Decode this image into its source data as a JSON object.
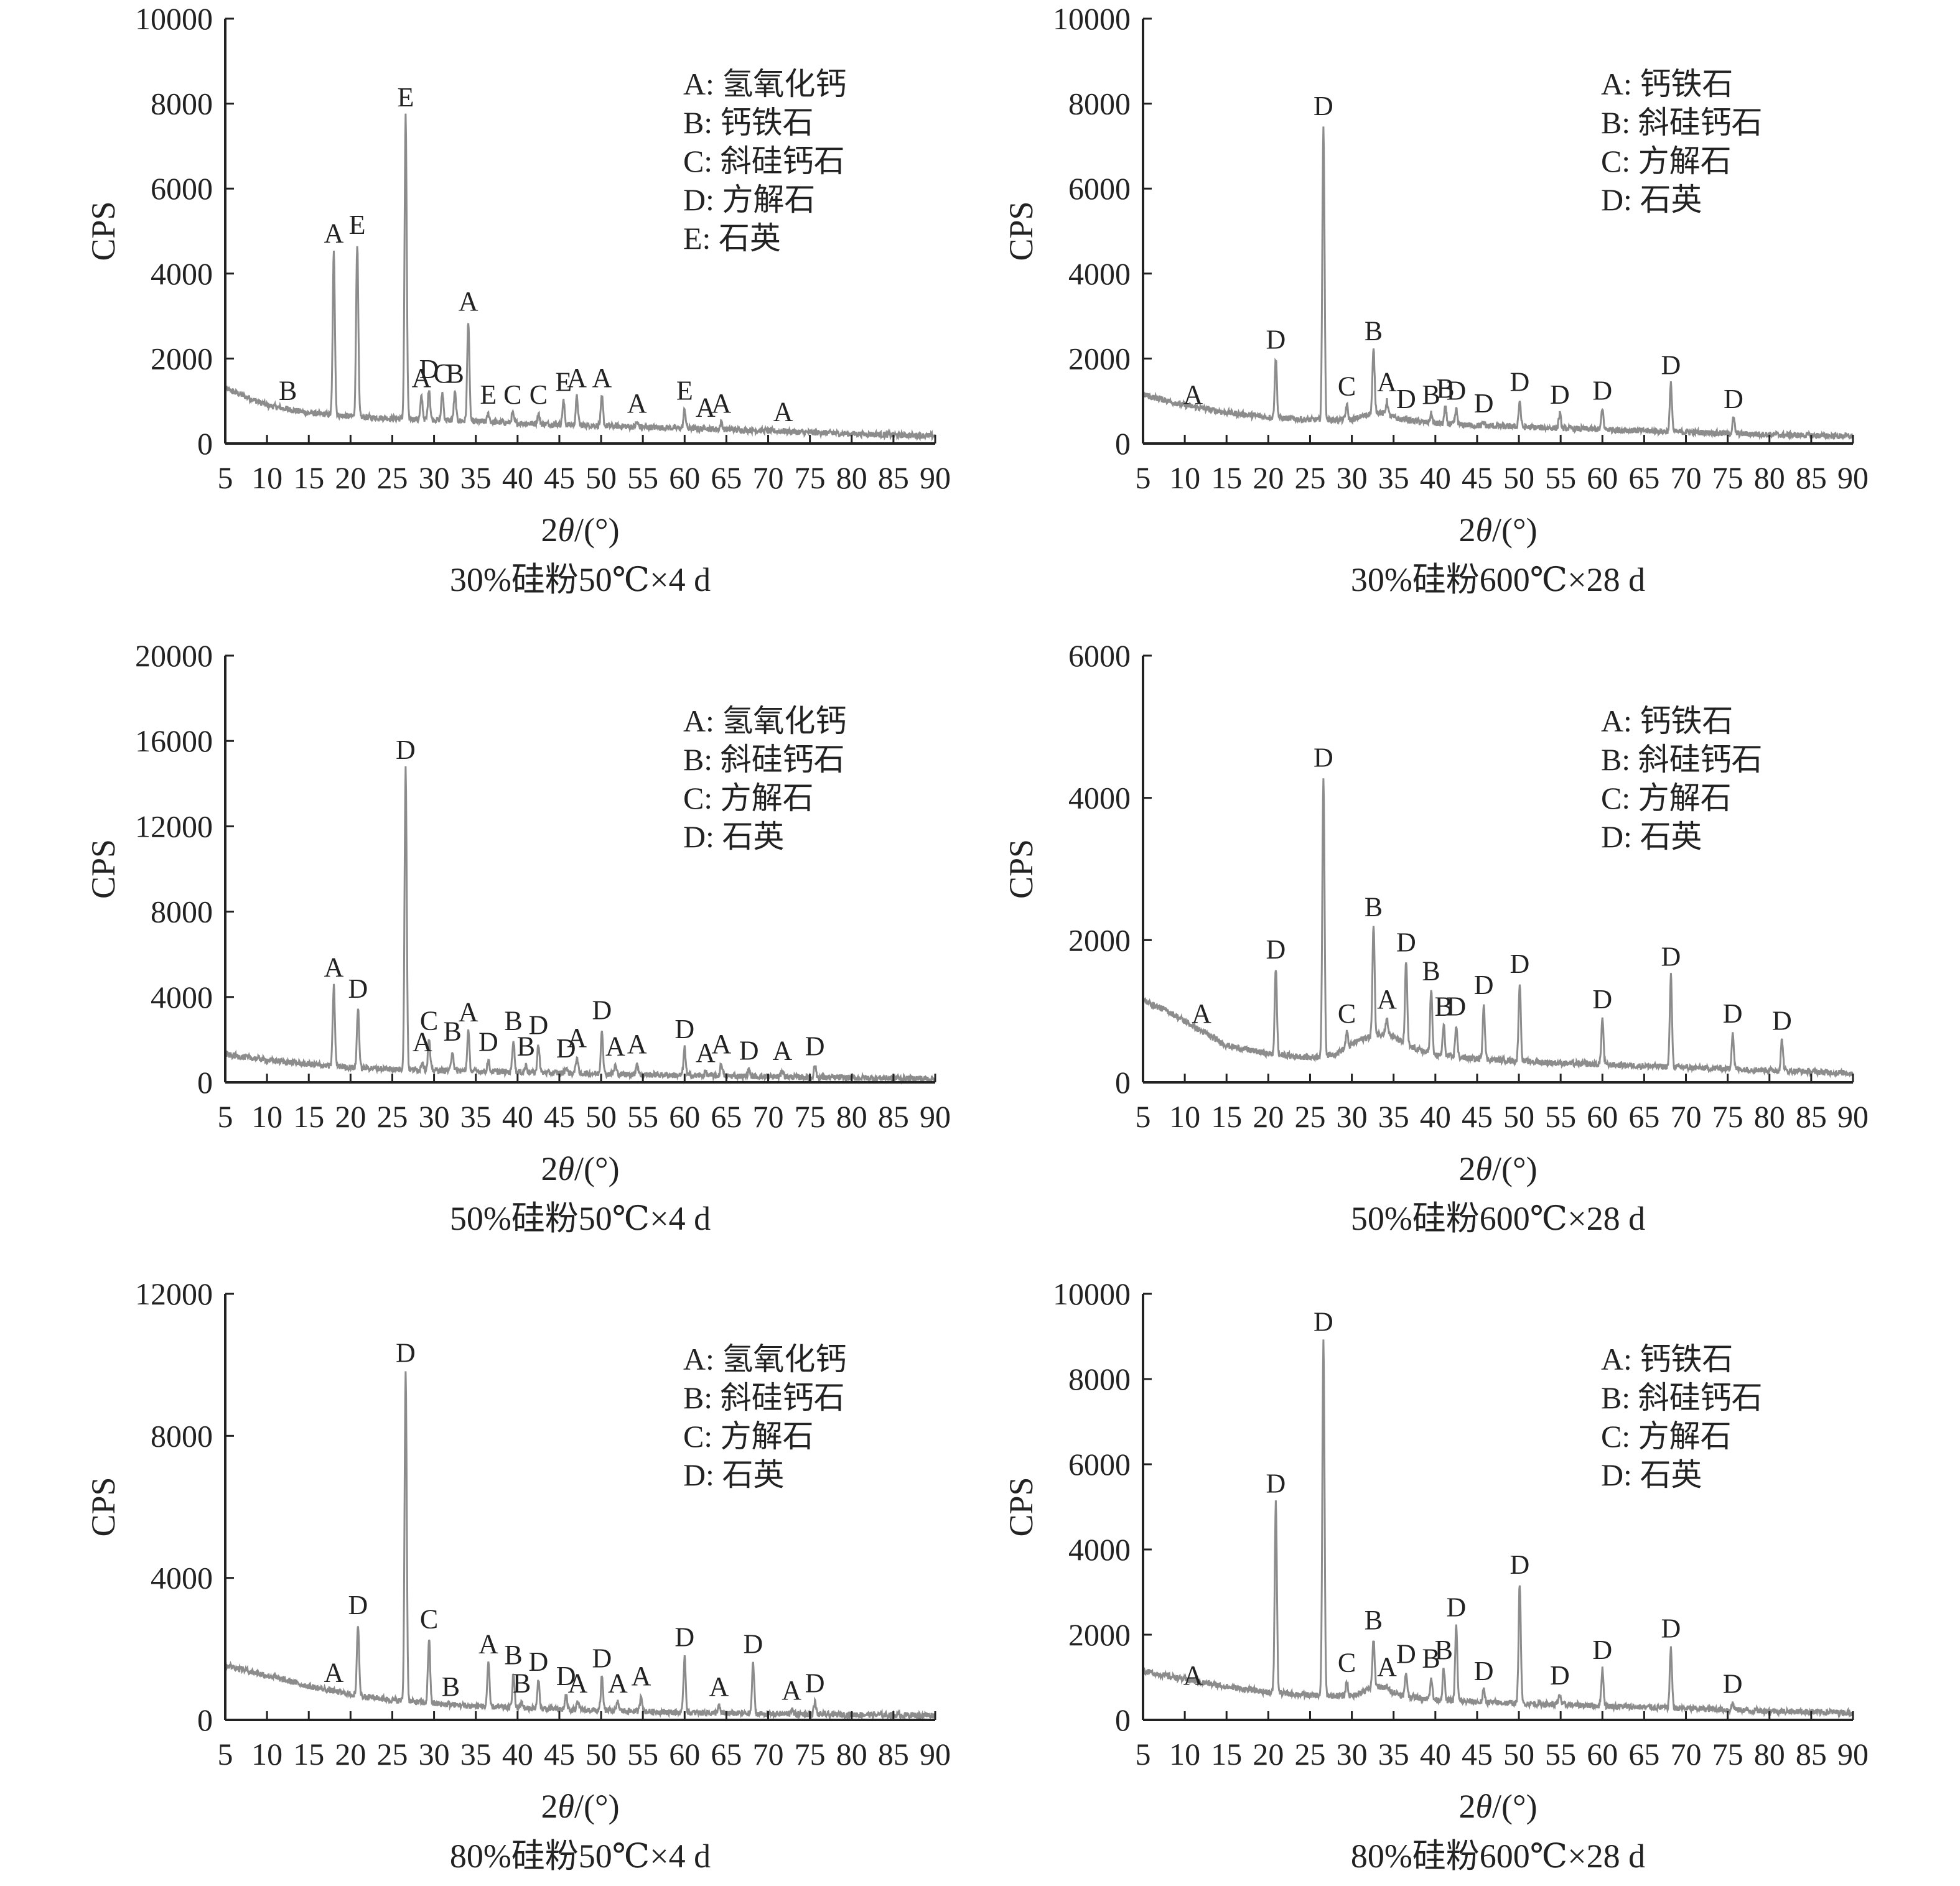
{
  "colors": {
    "axis": "#222222",
    "trace": "#8c8c8c",
    "text": "#222222"
  },
  "chart_data": [
    {
      "type": "line",
      "caption": "30%硅粉50℃×4 d",
      "xlabel": "2θ/(°)",
      "ylabel": "CPS",
      "xlim": [
        5,
        90
      ],
      "ylim": [
        0,
        10000
      ],
      "xticks": [
        5,
        10,
        15,
        20,
        25,
        30,
        35,
        40,
        45,
        50,
        55,
        60,
        65,
        70,
        75,
        80,
        85,
        90
      ],
      "yticks": [
        0,
        2000,
        4000,
        6000,
        8000,
        10000
      ],
      "legend": [
        "A: 氢氧化钙",
        "B: 钙铁石",
        "C: 斜硅钙石",
        "D: 方解石",
        "E: 石英"
      ],
      "legend_position": "top-right",
      "background": [
        [
          5,
          1300
        ],
        [
          10,
          900
        ],
        [
          15,
          720
        ],
        [
          20,
          640
        ],
        [
          25,
          590
        ],
        [
          30,
          560
        ],
        [
          35,
          520
        ],
        [
          40,
          480
        ],
        [
          45,
          450
        ],
        [
          50,
          420
        ],
        [
          55,
          390
        ],
        [
          60,
          360
        ],
        [
          65,
          330
        ],
        [
          70,
          300
        ],
        [
          75,
          260
        ],
        [
          80,
          230
        ],
        [
          85,
          200
        ],
        [
          90,
          180
        ]
      ],
      "peaks": [
        {
          "x": 12.5,
          "y": 800,
          "label": "B"
        },
        {
          "x": 18.0,
          "y": 4500,
          "label": "A"
        },
        {
          "x": 20.8,
          "y": 4700,
          "label": "E"
        },
        {
          "x": 26.6,
          "y": 7700,
          "label": "E"
        },
        {
          "x": 28.5,
          "y": 1100,
          "label": "A"
        },
        {
          "x": 29.4,
          "y": 1300,
          "label": "D"
        },
        {
          "x": 31.0,
          "y": 1200,
          "label": "C"
        },
        {
          "x": 32.5,
          "y": 1200,
          "label": "B"
        },
        {
          "x": 34.1,
          "y": 2900,
          "label": "A"
        },
        {
          "x": 36.5,
          "y": 700,
          "label": "E"
        },
        {
          "x": 39.4,
          "y": 700,
          "label": "C"
        },
        {
          "x": 42.5,
          "y": 700,
          "label": "C"
        },
        {
          "x": 45.5,
          "y": 1000,
          "label": "E"
        },
        {
          "x": 47.1,
          "y": 1100,
          "label": "A"
        },
        {
          "x": 50.1,
          "y": 1100,
          "label": "A"
        },
        {
          "x": 54.3,
          "y": 500,
          "label": "A"
        },
        {
          "x": 60.0,
          "y": 800,
          "label": "E"
        },
        {
          "x": 62.5,
          "y": 400,
          "label": "A"
        },
        {
          "x": 64.4,
          "y": 500,
          "label": "A"
        },
        {
          "x": 71.8,
          "y": 300,
          "label": "A"
        }
      ]
    },
    {
      "type": "line",
      "caption": "30%硅粉600℃×28 d",
      "xlabel": "2θ/(°)",
      "ylabel": "CPS",
      "xlim": [
        5,
        90
      ],
      "ylim": [
        0,
        10000
      ],
      "xticks": [
        5,
        10,
        15,
        20,
        25,
        30,
        35,
        40,
        45,
        50,
        55,
        60,
        65,
        70,
        75,
        80,
        85,
        90
      ],
      "yticks": [
        0,
        2000,
        4000,
        6000,
        8000,
        10000
      ],
      "legend": [
        "A: 钙铁石",
        "B: 斜硅钙石",
        "C: 方解石",
        "D: 石英"
      ],
      "legend_position": "top-right",
      "background": [
        [
          5,
          1150
        ],
        [
          10,
          900
        ],
        [
          15,
          730
        ],
        [
          20,
          620
        ],
        [
          25,
          560
        ],
        [
          30,
          560
        ],
        [
          33,
          750
        ],
        [
          36,
          560
        ],
        [
          40,
          470
        ],
        [
          45,
          420
        ],
        [
          50,
          390
        ],
        [
          55,
          360
        ],
        [
          60,
          330
        ],
        [
          65,
          300
        ],
        [
          70,
          270
        ],
        [
          75,
          240
        ],
        [
          80,
          210
        ],
        [
          85,
          190
        ],
        [
          90,
          170
        ]
      ],
      "peaks": [
        {
          "x": 11.0,
          "y": 700,
          "label": "A"
        },
        {
          "x": 20.9,
          "y": 2000,
          "label": "D"
        },
        {
          "x": 26.6,
          "y": 7500,
          "label": "D"
        },
        {
          "x": 29.4,
          "y": 900,
          "label": "C"
        },
        {
          "x": 32.6,
          "y": 2200,
          "label": "B"
        },
        {
          "x": 34.2,
          "y": 1000,
          "label": "A"
        },
        {
          "x": 36.5,
          "y": 600,
          "label": "D"
        },
        {
          "x": 39.5,
          "y": 700,
          "label": "B"
        },
        {
          "x": 41.2,
          "y": 850,
          "label": "B"
        },
        {
          "x": 42.5,
          "y": 800,
          "label": "D"
        },
        {
          "x": 45.8,
          "y": 500,
          "label": "D"
        },
        {
          "x": 50.1,
          "y": 1000,
          "label": "D"
        },
        {
          "x": 54.9,
          "y": 700,
          "label": "D"
        },
        {
          "x": 60.0,
          "y": 800,
          "label": "D"
        },
        {
          "x": 68.2,
          "y": 1400,
          "label": "D"
        },
        {
          "x": 75.7,
          "y": 600,
          "label": "D"
        }
      ]
    },
    {
      "type": "line",
      "caption": "50%硅粉50℃×4 d",
      "xlabel": "2θ/(°)",
      "ylabel": "CPS",
      "xlim": [
        5,
        90
      ],
      "ylim": [
        0,
        20000
      ],
      "xticks": [
        5,
        10,
        15,
        20,
        25,
        30,
        35,
        40,
        45,
        50,
        55,
        60,
        65,
        70,
        75,
        80,
        85,
        90
      ],
      "yticks": [
        0,
        4000,
        8000,
        12000,
        16000,
        20000
      ],
      "legend": [
        "A: 氢氧化钙",
        "B: 斜硅钙石",
        "C: 方解石",
        "D: 石英"
      ],
      "legend_position": "top-right",
      "background": [
        [
          5,
          1300
        ],
        [
          10,
          1050
        ],
        [
          15,
          850
        ],
        [
          20,
          700
        ],
        [
          25,
          620
        ],
        [
          30,
          570
        ],
        [
          35,
          520
        ],
        [
          40,
          480
        ],
        [
          45,
          440
        ],
        [
          50,
          400
        ],
        [
          55,
          360
        ],
        [
          60,
          330
        ],
        [
          65,
          300
        ],
        [
          70,
          270
        ],
        [
          75,
          240
        ],
        [
          80,
          210
        ],
        [
          85,
          190
        ],
        [
          90,
          170
        ]
      ],
      "peaks": [
        {
          "x": 18.0,
          "y": 4500,
          "label": "A"
        },
        {
          "x": 20.9,
          "y": 3500,
          "label": "D"
        },
        {
          "x": 26.6,
          "y": 14700,
          "label": "D"
        },
        {
          "x": 28.6,
          "y": 1000,
          "label": "A"
        },
        {
          "x": 29.4,
          "y": 2000,
          "label": "C"
        },
        {
          "x": 32.2,
          "y": 1500,
          "label": "B"
        },
        {
          "x": 34.1,
          "y": 2400,
          "label": "A"
        },
        {
          "x": 36.5,
          "y": 1000,
          "label": "D"
        },
        {
          "x": 39.5,
          "y": 2000,
          "label": "B"
        },
        {
          "x": 41.0,
          "y": 800,
          "label": "B"
        },
        {
          "x": 42.5,
          "y": 1800,
          "label": "D"
        },
        {
          "x": 45.8,
          "y": 700,
          "label": "D"
        },
        {
          "x": 47.1,
          "y": 1200,
          "label": "A"
        },
        {
          "x": 50.1,
          "y": 2500,
          "label": "D"
        },
        {
          "x": 51.7,
          "y": 800,
          "label": "A"
        },
        {
          "x": 54.3,
          "y": 900,
          "label": "A"
        },
        {
          "x": 60.0,
          "y": 1600,
          "label": "D"
        },
        {
          "x": 62.5,
          "y": 500,
          "label": "A"
        },
        {
          "x": 64.4,
          "y": 900,
          "label": "A"
        },
        {
          "x": 67.7,
          "y": 600,
          "label": "D"
        },
        {
          "x": 71.7,
          "y": 600,
          "label": "A"
        },
        {
          "x": 75.6,
          "y": 800,
          "label": "D"
        }
      ]
    },
    {
      "type": "line",
      "caption": "50%硅粉600℃×28 d",
      "xlabel": "2θ/(°)",
      "ylabel": "CPS",
      "xlim": [
        5,
        90
      ],
      "ylim": [
        0,
        6000
      ],
      "xticks": [
        5,
        10,
        15,
        20,
        25,
        30,
        35,
        40,
        45,
        50,
        55,
        60,
        65,
        70,
        75,
        80,
        85,
        90
      ],
      "yticks": [
        0,
        2000,
        4000,
        6000
      ],
      "legend": [
        "A: 钙铁石",
        "B: 斜硅钙石",
        "C: 方解石",
        "D: 石英"
      ],
      "legend_position": "top-right",
      "background": [
        [
          5,
          1150
        ],
        [
          8,
          1000
        ],
        [
          12,
          720
        ],
        [
          15,
          520
        ],
        [
          20,
          400
        ],
        [
          25,
          350
        ],
        [
          28,
          400
        ],
        [
          31,
          600
        ],
        [
          34,
          700
        ],
        [
          37,
          500
        ],
        [
          40,
          380
        ],
        [
          45,
          330
        ],
        [
          50,
          300
        ],
        [
          55,
          270
        ],
        [
          60,
          250
        ],
        [
          65,
          230
        ],
        [
          70,
          210
        ],
        [
          75,
          190
        ],
        [
          80,
          170
        ],
        [
          85,
          150
        ],
        [
          90,
          130
        ]
      ],
      "peaks": [
        {
          "x": 12.0,
          "y": 700,
          "label": "A"
        },
        {
          "x": 20.9,
          "y": 1600,
          "label": "D"
        },
        {
          "x": 26.6,
          "y": 4300,
          "label": "D"
        },
        {
          "x": 29.4,
          "y": 700,
          "label": "C"
        },
        {
          "x": 32.6,
          "y": 2200,
          "label": "B"
        },
        {
          "x": 34.2,
          "y": 900,
          "label": "A"
        },
        {
          "x": 36.5,
          "y": 1700,
          "label": "D"
        },
        {
          "x": 39.5,
          "y": 1300,
          "label": "B"
        },
        {
          "x": 41.0,
          "y": 800,
          "label": "B"
        },
        {
          "x": 42.5,
          "y": 800,
          "label": "D"
        },
        {
          "x": 45.8,
          "y": 1100,
          "label": "D"
        },
        {
          "x": 50.1,
          "y": 1400,
          "label": "D"
        },
        {
          "x": 60.0,
          "y": 900,
          "label": "D"
        },
        {
          "x": 68.2,
          "y": 1500,
          "label": "D"
        },
        {
          "x": 75.6,
          "y": 700,
          "label": "D"
        },
        {
          "x": 81.5,
          "y": 600,
          "label": "D"
        }
      ]
    },
    {
      "type": "line",
      "caption": "80%硅粉50℃×4 d",
      "xlabel": "2θ/(°)",
      "ylabel": "CPS",
      "xlim": [
        5,
        90
      ],
      "ylim": [
        0,
        12000
      ],
      "xticks": [
        5,
        10,
        15,
        20,
        25,
        30,
        35,
        40,
        45,
        50,
        55,
        60,
        65,
        70,
        75,
        80,
        85,
        90
      ],
      "yticks": [
        0,
        4000,
        8000,
        12000
      ],
      "legend": [
        "A: 氢氧化钙",
        "B: 斜硅钙石",
        "C: 方解石",
        "D: 石英"
      ],
      "legend_position": "top-right",
      "background": [
        [
          5,
          1550
        ],
        [
          10,
          1250
        ],
        [
          15,
          950
        ],
        [
          20,
          720
        ],
        [
          25,
          560
        ],
        [
          30,
          460
        ],
        [
          35,
          390
        ],
        [
          40,
          340
        ],
        [
          45,
          300
        ],
        [
          50,
          270
        ],
        [
          55,
          240
        ],
        [
          60,
          210
        ],
        [
          65,
          190
        ],
        [
          70,
          170
        ],
        [
          75,
          160
        ],
        [
          80,
          150
        ],
        [
          85,
          140
        ],
        [
          90,
          130
        ]
      ],
      "peaks": [
        {
          "x": 18.0,
          "y": 800,
          "label": "A"
        },
        {
          "x": 20.9,
          "y": 2700,
          "label": "D"
        },
        {
          "x": 26.6,
          "y": 9800,
          "label": "D"
        },
        {
          "x": 29.4,
          "y": 2300,
          "label": "C"
        },
        {
          "x": 32.0,
          "y": 400,
          "label": "B"
        },
        {
          "x": 36.5,
          "y": 1600,
          "label": "A"
        },
        {
          "x": 39.5,
          "y": 1300,
          "label": "B"
        },
        {
          "x": 40.5,
          "y": 500,
          "label": "B"
        },
        {
          "x": 42.5,
          "y": 1100,
          "label": "D"
        },
        {
          "x": 45.8,
          "y": 700,
          "label": "D"
        },
        {
          "x": 47.2,
          "y": 500,
          "label": "A"
        },
        {
          "x": 50.1,
          "y": 1200,
          "label": "D"
        },
        {
          "x": 52.0,
          "y": 500,
          "label": "A"
        },
        {
          "x": 54.8,
          "y": 700,
          "label": "A"
        },
        {
          "x": 60.0,
          "y": 1800,
          "label": "D"
        },
        {
          "x": 64.1,
          "y": 400,
          "label": "A"
        },
        {
          "x": 68.2,
          "y": 1600,
          "label": "D"
        },
        {
          "x": 72.8,
          "y": 300,
          "label": "A"
        },
        {
          "x": 75.6,
          "y": 500,
          "label": "D"
        }
      ]
    },
    {
      "type": "line",
      "caption": "80%硅粉600℃×28 d",
      "xlabel": "2θ/(°)",
      "ylabel": "CPS",
      "xlim": [
        5,
        90
      ],
      "ylim": [
        0,
        10000
      ],
      "xticks": [
        5,
        10,
        15,
        20,
        25,
        30,
        35,
        40,
        45,
        50,
        55,
        60,
        65,
        70,
        75,
        80,
        85,
        90
      ],
      "yticks": [
        0,
        2000,
        4000,
        6000,
        8000,
        10000
      ],
      "legend": [
        "A: 钙铁石",
        "B: 斜硅钙石",
        "C: 方解石",
        "D: 石英"
      ],
      "legend_position": "top-right",
      "background": [
        [
          5,
          1150
        ],
        [
          10,
          950
        ],
        [
          15,
          780
        ],
        [
          20,
          650
        ],
        [
          25,
          580
        ],
        [
          30,
          560
        ],
        [
          33,
          800
        ],
        [
          36,
          580
        ],
        [
          40,
          470
        ],
        [
          45,
          420
        ],
        [
          50,
          390
        ],
        [
          55,
          360
        ],
        [
          60,
          330
        ],
        [
          65,
          300
        ],
        [
          70,
          270
        ],
        [
          75,
          240
        ],
        [
          80,
          210
        ],
        [
          85,
          190
        ],
        [
          90,
          170
        ]
      ],
      "peaks": [
        {
          "x": 11.0,
          "y": 600,
          "label": "A"
        },
        {
          "x": 20.9,
          "y": 5100,
          "label": "D"
        },
        {
          "x": 26.6,
          "y": 8900,
          "label": "D"
        },
        {
          "x": 29.4,
          "y": 900,
          "label": "C"
        },
        {
          "x": 32.6,
          "y": 1900,
          "label": "B"
        },
        {
          "x": 34.2,
          "y": 800,
          "label": "A"
        },
        {
          "x": 36.5,
          "y": 1100,
          "label": "D"
        },
        {
          "x": 39.5,
          "y": 1000,
          "label": "B"
        },
        {
          "x": 41.0,
          "y": 1200,
          "label": "B"
        },
        {
          "x": 42.5,
          "y": 2200,
          "label": "D"
        },
        {
          "x": 45.8,
          "y": 700,
          "label": "D"
        },
        {
          "x": 50.1,
          "y": 3200,
          "label": "D"
        },
        {
          "x": 54.9,
          "y": 600,
          "label": "D"
        },
        {
          "x": 60.0,
          "y": 1200,
          "label": "D"
        },
        {
          "x": 68.2,
          "y": 1700,
          "label": "D"
        },
        {
          "x": 75.6,
          "y": 400,
          "label": "D"
        }
      ]
    }
  ]
}
